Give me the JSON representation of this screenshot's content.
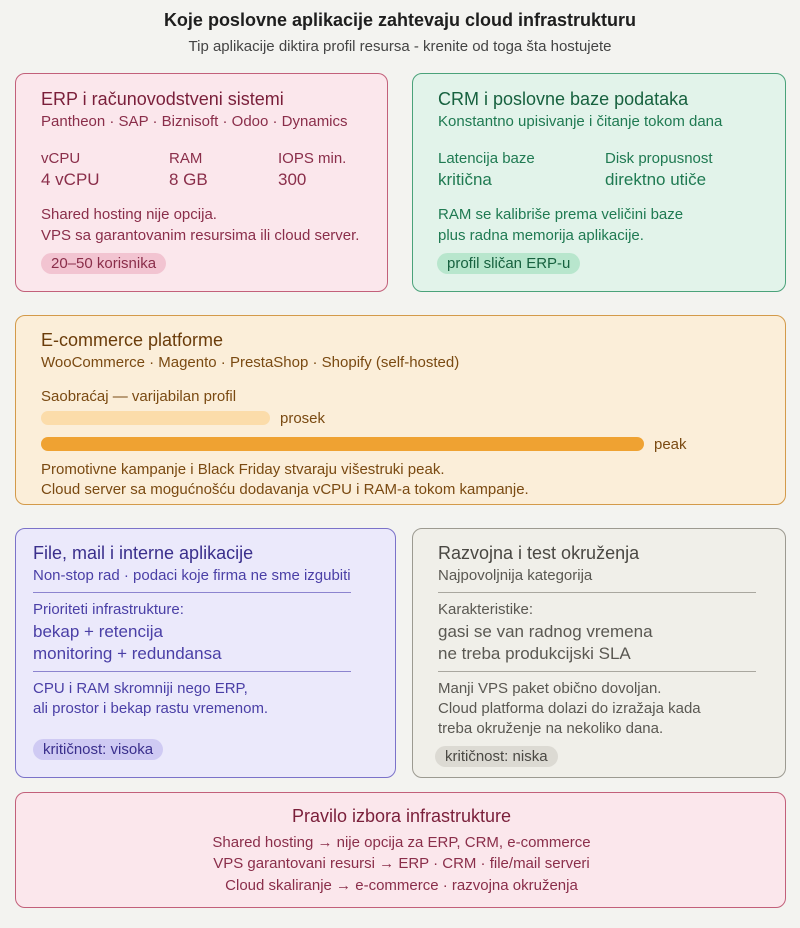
{
  "header": {
    "title": "Koje poslovne aplikacije zahtevaju cloud infrastrukturu",
    "subtitle": "Tip aplikacije diktira profil resursa - krenite od toga šta hostujete"
  },
  "erp": {
    "title": "ERP i računovodstveni sistemi",
    "examples": "Pantheon · SAP · Biznisoft · Odoo · Dynamics",
    "stats": [
      {
        "label": "vCPU",
        "value": "4 vCPU"
      },
      {
        "label": "RAM",
        "value": "8 GB"
      },
      {
        "label": "IOPS min.",
        "value": "300"
      }
    ],
    "note_line1": "Shared hosting nije opcija.",
    "note_line2": "VPS sa garantovanim resursima ili cloud server.",
    "badge": "20–50 korisnika"
  },
  "crm": {
    "title": "CRM i poslovne baze podataka",
    "subtitle": "Konstantno upisivanje i čitanje tokom dana",
    "stats": [
      {
        "label": "Latencija baze",
        "value": "kritična"
      },
      {
        "label": "Disk propusnost",
        "value": "direktno utiče"
      }
    ],
    "note_line1": "RAM se kalibriše prema veličini baze",
    "note_line2": "plus radna memorija aplikacije.",
    "badge": "profil sličan ERP-u"
  },
  "ecommerce": {
    "title": "E-commerce platforme",
    "examples": "WooCommerce · Magento · PrestaShop · Shopify (self-hosted)",
    "traffic_label": "Saobraćaj — varijabilan profil",
    "bars": [
      {
        "label": "prosek",
        "level": 0.38
      },
      {
        "label": "peak",
        "level": 1.0
      }
    ],
    "note_line1": "Promotivne kampanje i Black Friday stvaraju višestruki peak.",
    "note_line2": "Cloud server sa mogućnošću dodavanja vCPU i RAM-a tokom kampanje."
  },
  "file_mail": {
    "title": "File, mail i interne aplikacije",
    "subtitle": "Non-stop rad · podaci koje firma ne sme izgubiti",
    "priorities_label": "Prioriteti infrastrukture:",
    "priority_line1": "bekap + retencija",
    "priority_line2": "monitoring + redundansa",
    "note_line1": "CPU i RAM skromniji nego ERP,",
    "note_line2": "ali prostor i bekap rastu vremenom.",
    "badge": "kritičnost: visoka"
  },
  "dev_test": {
    "title": "Razvojna i test okruženja",
    "subtitle": "Najpovoljnija kategorija",
    "char_label": "Karakteristike:",
    "char_line1": "gasi se van radnog vremena",
    "char_line2": "ne treba produkcijski SLA",
    "note_line1": "Manji VPS paket obično dovoljan.",
    "note_line2": "Cloud platforma dolazi do izražaja kada",
    "note_line3": "treba okruženje na nekoliko dana.",
    "badge": "kritičnost: niska"
  },
  "rule": {
    "title": "Pravilo izbora infrastrukture",
    "line1": "Shared hosting → nije opcija za ERP, CRM, e-commerce",
    "line2": "VPS garantovani resursi → ERP · CRM · file/mail serveri",
    "line3": "Cloud skaliranje → e-commerce · razvojna okruženja"
  }
}
